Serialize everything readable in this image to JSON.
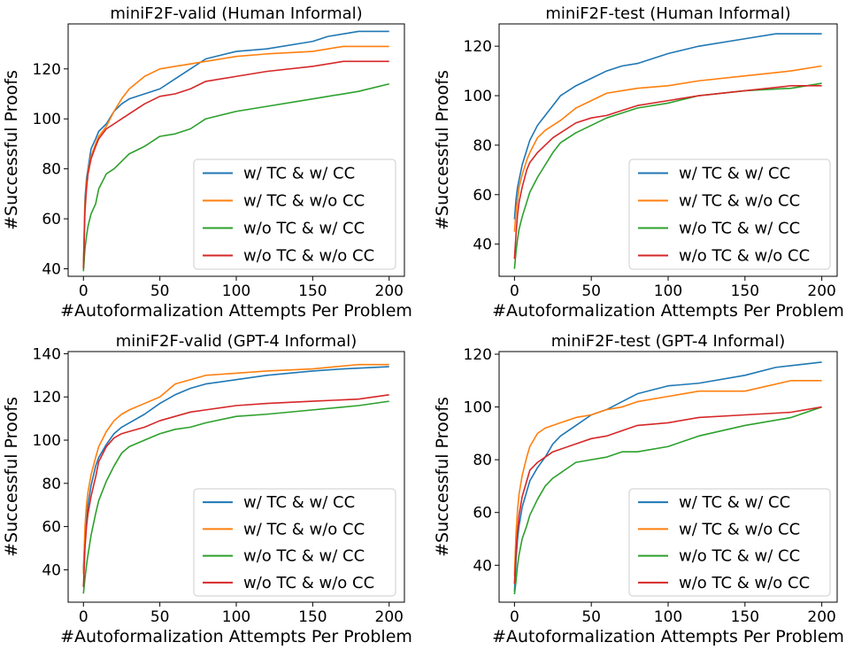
{
  "chart_data": [
    {
      "type": "line",
      "title": "miniF2F-valid (Human Informal)",
      "xlabel": "#Autoformalization Attempts Per Problem",
      "ylabel": "#Successful Proofs",
      "xlim": [
        -10,
        210
      ],
      "ylim": [
        37,
        138
      ],
      "xticks": [
        0,
        50,
        100,
        150,
        200
      ],
      "yticks": [
        40,
        60,
        80,
        100,
        120
      ],
      "legend_position": "lower right",
      "grid": false,
      "series": [
        {
          "name": "w/ TC & w/ CC",
          "color": "#1f77b4",
          "x": [
            0,
            1,
            2,
            3,
            5,
            8,
            10,
            15,
            20,
            25,
            30,
            40,
            50,
            60,
            70,
            80,
            100,
            120,
            150,
            160,
            180,
            200
          ],
          "y": [
            40,
            68,
            76,
            80,
            88,
            92,
            95,
            98,
            103,
            106,
            108,
            110,
            112,
            116,
            120,
            124,
            127,
            128,
            131,
            133,
            135,
            135
          ]
        },
        {
          "name": "w/ TC & w/o CC",
          "color": "#ff7f0e",
          "x": [
            0,
            1,
            2,
            3,
            5,
            8,
            10,
            15,
            20,
            25,
            30,
            40,
            50,
            60,
            70,
            80,
            100,
            120,
            150,
            170,
            200
          ],
          "y": [
            41,
            66,
            74,
            79,
            85,
            90,
            93,
            97,
            103,
            108,
            112,
            117,
            120,
            121,
            122,
            123,
            125,
            126,
            127,
            129,
            129
          ]
        },
        {
          "name": "w/o TC & w/ CC",
          "color": "#2ca02c",
          "x": [
            0,
            1,
            2,
            3,
            5,
            8,
            10,
            15,
            20,
            25,
            30,
            40,
            50,
            60,
            70,
            80,
            100,
            120,
            150,
            180,
            200
          ],
          "y": [
            39,
            48,
            53,
            57,
            62,
            66,
            72,
            78,
            80,
            83,
            86,
            89,
            93,
            94,
            96,
            100,
            103,
            105,
            108,
            111,
            114
          ]
        },
        {
          "name": "w/o TC & w/o CC",
          "color": "#d62728",
          "x": [
            0,
            1,
            2,
            3,
            5,
            8,
            10,
            15,
            20,
            25,
            30,
            40,
            50,
            60,
            70,
            80,
            100,
            120,
            150,
            170,
            200
          ],
          "y": [
            40,
            63,
            72,
            78,
            84,
            89,
            92,
            96,
            98,
            100,
            102,
            106,
            109,
            110,
            112,
            115,
            117,
            119,
            121,
            123,
            123
          ]
        }
      ]
    },
    {
      "type": "line",
      "title": "miniF2F-test (Human Informal)",
      "xlabel": "#Autoformalization Attempts Per Problem",
      "ylabel": "#Successful Proofs",
      "xlim": [
        -10,
        210
      ],
      "ylim": [
        27,
        129
      ],
      "xticks": [
        0,
        50,
        100,
        150,
        200
      ],
      "yticks": [
        40,
        60,
        80,
        100,
        120
      ],
      "legend_position": "lower right",
      "grid": false,
      "series": [
        {
          "name": "w/ TC & w/ CC",
          "color": "#1f77b4",
          "x": [
            0,
            1,
            2,
            3,
            5,
            8,
            10,
            15,
            20,
            25,
            30,
            40,
            50,
            60,
            70,
            80,
            100,
            120,
            150,
            170,
            200
          ],
          "y": [
            50,
            58,
            63,
            66,
            72,
            78,
            82,
            88,
            92,
            96,
            100,
            104,
            107,
            110,
            112,
            113,
            117,
            120,
            123,
            125,
            125
          ]
        },
        {
          "name": "w/ TC & w/o CC",
          "color": "#ff7f0e",
          "x": [
            0,
            1,
            2,
            3,
            5,
            8,
            10,
            15,
            20,
            25,
            30,
            40,
            50,
            60,
            70,
            80,
            100,
            120,
            150,
            180,
            200
          ],
          "y": [
            45,
            53,
            58,
            63,
            68,
            74,
            77,
            83,
            86,
            88,
            90,
            95,
            98,
            101,
            102,
            103,
            104,
            106,
            108,
            110,
            112
          ]
        },
        {
          "name": "w/o TC & w/ CC",
          "color": "#2ca02c",
          "x": [
            0,
            1,
            2,
            3,
            5,
            8,
            10,
            15,
            20,
            25,
            30,
            40,
            50,
            60,
            70,
            80,
            100,
            120,
            150,
            180,
            200
          ],
          "y": [
            30,
            37,
            42,
            46,
            51,
            57,
            61,
            67,
            72,
            77,
            81,
            85,
            88,
            91,
            93,
            95,
            97,
            100,
            102,
            103,
            105
          ]
        },
        {
          "name": "w/o TC & w/o CC",
          "color": "#d62728",
          "x": [
            0,
            1,
            2,
            3,
            5,
            8,
            10,
            15,
            20,
            25,
            30,
            40,
            50,
            60,
            70,
            80,
            100,
            120,
            150,
            180,
            200
          ],
          "y": [
            34,
            44,
            52,
            57,
            63,
            70,
            73,
            77,
            80,
            83,
            85,
            89,
            91,
            92,
            94,
            96,
            98,
            100,
            102,
            104,
            104
          ]
        }
      ]
    },
    {
      "type": "line",
      "title": "miniF2F-valid (GPT-4 Informal)",
      "xlabel": "#Autoformalization Attempts Per Problem",
      "ylabel": "#Successful Proofs",
      "xlim": [
        -10,
        210
      ],
      "ylim": [
        25,
        141
      ],
      "xticks": [
        0,
        50,
        100,
        150,
        200
      ],
      "yticks": [
        40,
        60,
        80,
        100,
        120,
        140
      ],
      "legend_position": "lower right",
      "grid": false,
      "series": [
        {
          "name": "w/ TC & w/ CC",
          "color": "#1f77b4",
          "x": [
            0,
            1,
            2,
            3,
            5,
            8,
            10,
            15,
            20,
            25,
            30,
            40,
            50,
            60,
            70,
            80,
            100,
            120,
            150,
            170,
            200
          ],
          "y": [
            40,
            56,
            64,
            70,
            79,
            88,
            92,
            98,
            103,
            106,
            108,
            112,
            117,
            121,
            124,
            126,
            128,
            130,
            132,
            133,
            134
          ]
        },
        {
          "name": "w/ TC & w/o CC",
          "color": "#ff7f0e",
          "x": [
            0,
            1,
            2,
            3,
            5,
            8,
            10,
            15,
            20,
            25,
            30,
            40,
            50,
            60,
            70,
            80,
            100,
            120,
            150,
            180,
            200
          ],
          "y": [
            38,
            60,
            70,
            76,
            84,
            92,
            97,
            104,
            109,
            112,
            114,
            117,
            120,
            126,
            128,
            130,
            131,
            132,
            133,
            135,
            135
          ]
        },
        {
          "name": "w/o TC & w/ CC",
          "color": "#2ca02c",
          "x": [
            0,
            1,
            2,
            3,
            5,
            8,
            10,
            15,
            20,
            25,
            30,
            40,
            50,
            60,
            70,
            80,
            100,
            120,
            150,
            180,
            200
          ],
          "y": [
            29,
            36,
            42,
            47,
            56,
            66,
            72,
            81,
            88,
            94,
            97,
            100,
            103,
            105,
            106,
            108,
            111,
            112,
            114,
            116,
            118
          ]
        },
        {
          "name": "w/o TC & w/o CC",
          "color": "#d62728",
          "x": [
            0,
            1,
            2,
            3,
            5,
            8,
            10,
            15,
            20,
            25,
            30,
            40,
            50,
            60,
            70,
            80,
            100,
            120,
            150,
            180,
            200
          ],
          "y": [
            32,
            50,
            60,
            66,
            74,
            83,
            90,
            97,
            101,
            103,
            104,
            106,
            109,
            111,
            113,
            114,
            116,
            117,
            118,
            119,
            121
          ]
        }
      ]
    },
    {
      "type": "line",
      "title": "miniF2F-test (GPT-4 Informal)",
      "xlabel": "#Autoformalization Attempts Per Problem",
      "ylabel": "#Successful Proofs",
      "xlim": [
        -10,
        210
      ],
      "ylim": [
        26,
        121
      ],
      "xticks": [
        0,
        50,
        100,
        150,
        200
      ],
      "yticks": [
        40,
        60,
        80,
        100,
        120
      ],
      "legend_position": "lower right",
      "grid": false,
      "series": [
        {
          "name": "w/ TC & w/ CC",
          "color": "#1f77b4",
          "x": [
            0,
            1,
            2,
            3,
            5,
            8,
            10,
            15,
            20,
            25,
            30,
            40,
            50,
            60,
            70,
            80,
            100,
            120,
            150,
            170,
            200
          ],
          "y": [
            30,
            42,
            50,
            55,
            62,
            68,
            72,
            77,
            81,
            86,
            89,
            93,
            97,
            99,
            102,
            105,
            108,
            109,
            112,
            115,
            117
          ]
        },
        {
          "name": "w/ TC & w/o CC",
          "color": "#ff7f0e",
          "x": [
            0,
            1,
            2,
            3,
            5,
            8,
            10,
            15,
            20,
            25,
            30,
            40,
            50,
            60,
            70,
            80,
            100,
            120,
            150,
            180,
            200
          ],
          "y": [
            36,
            52,
            61,
            67,
            74,
            81,
            85,
            90,
            92,
            93,
            94,
            96,
            97,
            99,
            100,
            102,
            104,
            106,
            106,
            110,
            110
          ]
        },
        {
          "name": "w/o TC & w/ CC",
          "color": "#2ca02c",
          "x": [
            0,
            1,
            2,
            3,
            5,
            8,
            10,
            15,
            20,
            25,
            30,
            40,
            50,
            60,
            70,
            80,
            100,
            120,
            150,
            180,
            200
          ],
          "y": [
            29,
            34,
            40,
            44,
            50,
            55,
            59,
            65,
            70,
            73,
            75,
            79,
            80,
            81,
            83,
            83,
            85,
            89,
            93,
            96,
            100
          ]
        },
        {
          "name": "w/o TC & w/o CC",
          "color": "#d62728",
          "x": [
            0,
            1,
            2,
            3,
            5,
            8,
            10,
            15,
            20,
            25,
            30,
            40,
            50,
            60,
            70,
            80,
            100,
            120,
            150,
            180,
            200
          ],
          "y": [
            33,
            45,
            53,
            59,
            66,
            72,
            76,
            79,
            81,
            83,
            84,
            86,
            88,
            89,
            91,
            93,
            94,
            96,
            97,
            98,
            100
          ]
        }
      ]
    }
  ]
}
